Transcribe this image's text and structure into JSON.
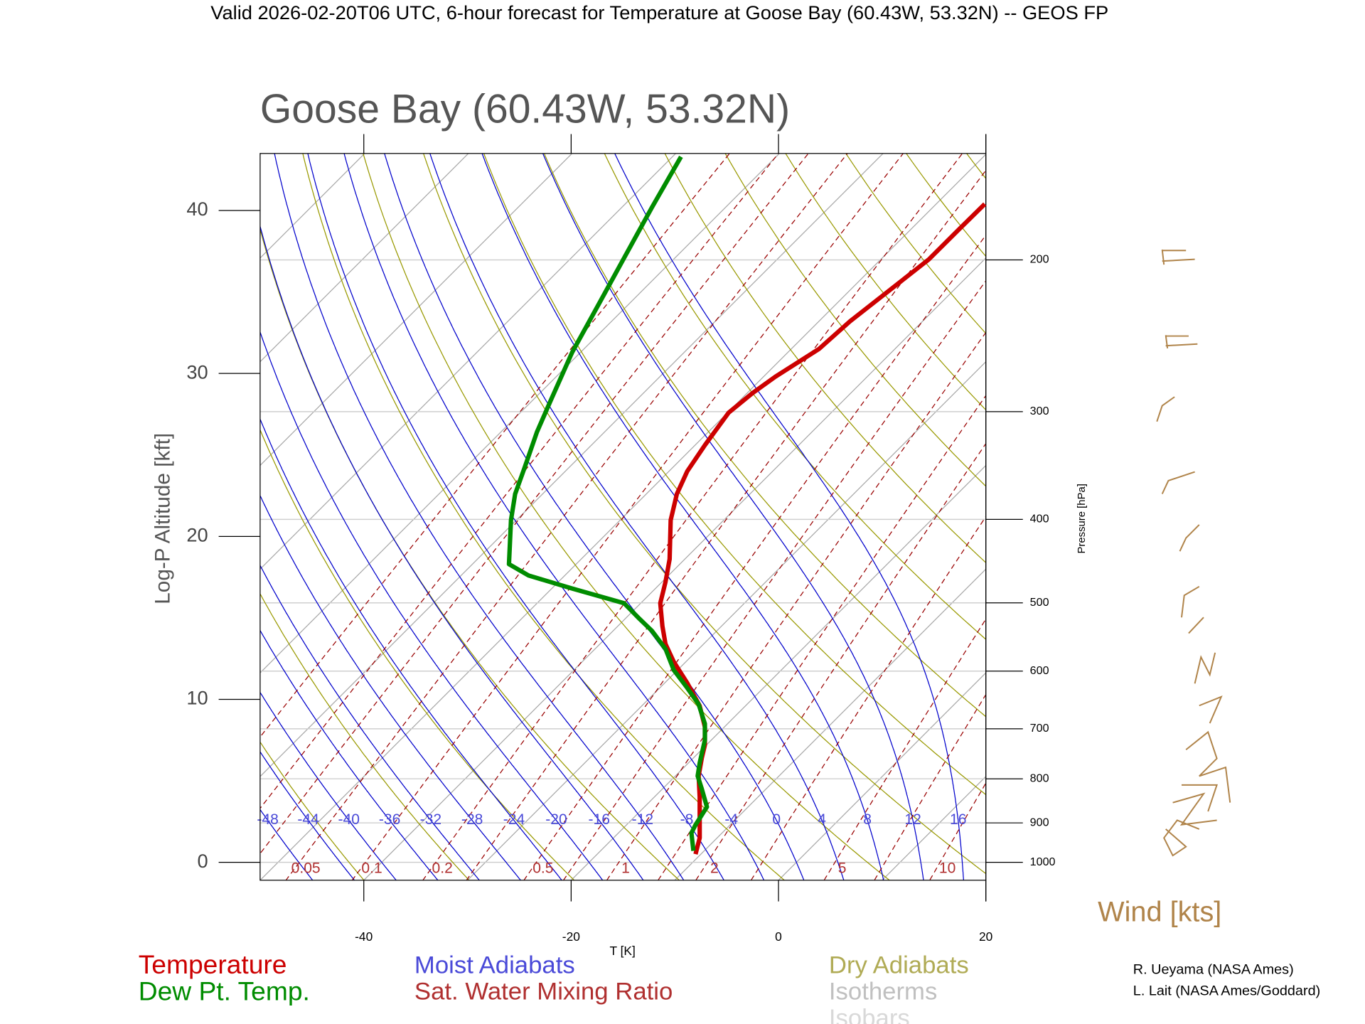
{
  "chart_data": {
    "type": "skewt",
    "header": "Valid 2026-02-20T06 UTC, 6-hour forecast for Temperature at Goose Bay (60.43W, 53.32N) -- GEOS FP",
    "title": "Goose Bay (60.43W, 53.32N)",
    "xlabel": "T [K]",
    "ylabel": "Log-P Altitude [kft]",
    "y2label": "Pressure [hPa]",
    "xlim": [
      -50,
      20
    ],
    "xticks": [
      -40,
      -20,
      0,
      20
    ],
    "ylim": [
      -1.1,
      43.5
    ],
    "yticks": [
      0,
      10,
      20,
      30,
      40
    ],
    "y2lim": [
      1049,
      150.5
    ],
    "y2log": true,
    "y2ticks": [
      200,
      300,
      400,
      500,
      600,
      700,
      800,
      900,
      1000
    ],
    "series": [
      {
        "name": "Temperature",
        "color": "#cc0000",
        "x": [
          -8.0,
          -7.6,
          -7.6,
          -7.7,
          -7.4,
          -7.1,
          -7.1,
          -7.6,
          -8.8,
          -10.1,
          -10.9,
          -11.2,
          -11.4,
          -10.9,
          -10.5,
          -10.4,
          -9.8,
          -8.8,
          -7.1,
          -4.8,
          -2.5,
          -0.3,
          3.9,
          6.9,
          10.7,
          14.5,
          17.5,
          19.9
        ],
        "values": [
          0.5,
          1.5,
          4.0,
          5.3,
          6.4,
          7.2,
          8.3,
          9.6,
          11.0,
          12.3,
          13.4,
          14.5,
          15.9,
          17.2,
          18.6,
          21.0,
          22.6,
          24.0,
          25.6,
          27.6,
          28.8,
          29.8,
          31.5,
          33.2,
          35.1,
          37.0,
          38.9,
          40.4
        ]
      },
      {
        "name": "Dew Pt. Temp.",
        "color": "#008c00",
        "x": [
          -8.2,
          -8.4,
          -8.0,
          -6.9,
          -7.4,
          -7.8,
          -7.6,
          -7.1,
          -7.1,
          -7.7,
          -8.8,
          -10.1,
          -10.9,
          -12.2,
          -13.5,
          -14.9,
          -19.9,
          -24.1,
          -26.0,
          -25.8,
          -25.4,
          -24.5,
          -23.3,
          -22.0,
          -19.9,
          -17.3,
          -14.8,
          -12.2,
          -9.4
        ],
        "values": [
          0.7,
          1.8,
          2.3,
          3.4,
          4.5,
          5.3,
          6.1,
          7.5,
          8.5,
          9.7,
          10.7,
          11.8,
          13.1,
          14.2,
          15.0,
          15.9,
          16.8,
          17.6,
          18.3,
          21.0,
          22.6,
          24.2,
          26.4,
          28.3,
          31.3,
          34.3,
          37.2,
          40.2,
          43.3
        ]
      }
    ],
    "background_legend": [
      {
        "name": "Moist Adiabats",
        "color": "#0000cc",
        "text_color": "#4a4ad8"
      },
      {
        "name": "Sat. Water Mixing Ratio",
        "color": "#990000",
        "text_color": "#b03030"
      },
      {
        "name": "Dry Adiabats",
        "color": "#999900",
        "text_color": "#b0ab55"
      },
      {
        "name": "Isotherms",
        "color": "#a8a8a8",
        "text_color": "#c0c0c0"
      },
      {
        "name": "Isobars",
        "color": "#cfcfcf",
        "text_color": "#d8d8d8"
      }
    ],
    "moist_adiabat_labels": [
      -48,
      -44,
      -40,
      -36,
      -32,
      -28,
      -24,
      -20,
      -16,
      -12,
      -8,
      -4,
      0,
      4,
      8,
      12,
      16
    ],
    "mixing_ratio_labels": [
      0.05,
      0.1,
      0.2,
      0.5,
      1,
      2,
      5,
      10
    ],
    "wind_label": "Wind [kts]",
    "credits": [
      "R. Ueyama (NASA Ames)",
      "L. Lait (NASA Ames/Goddard)"
    ]
  }
}
